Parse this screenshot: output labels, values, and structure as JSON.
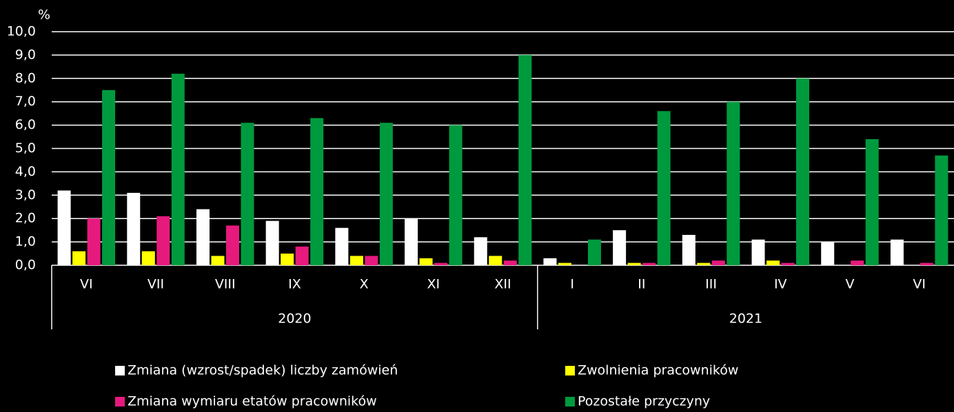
{
  "chart_data": {
    "type": "bar",
    "y_label": "%",
    "categories": [
      "VI",
      "VII",
      "VIII",
      "IX",
      "X",
      "XI",
      "XII",
      "I",
      "II",
      "III",
      "IV",
      "V",
      "VI"
    ],
    "x_groups": [
      {
        "label": "2020",
        "count": 7
      },
      {
        "label": "2021",
        "count": 6
      }
    ],
    "series": [
      {
        "name": "Zmiana (wzrost/spadek) liczby zamówień",
        "color": "#ffffff",
        "values": [
          3.2,
          3.1,
          2.4,
          1.9,
          1.6,
          2.0,
          1.2,
          0.3,
          1.5,
          1.3,
          1.1,
          1.0,
          1.1
        ]
      },
      {
        "name": "Zwolnienia pracowników",
        "color": "#ffff00",
        "values": [
          0.6,
          0.6,
          0.4,
          0.5,
          0.4,
          0.3,
          0.4,
          0.1,
          0.1,
          0.1,
          0.2,
          0,
          0
        ]
      },
      {
        "name": "Zmiana wymiaru etatów pracowników",
        "color": "#e6197d",
        "values": [
          2.0,
          2.1,
          1.7,
          0.8,
          0.4,
          0.1,
          0.2,
          0,
          0.1,
          0.2,
          0.1,
          0.2,
          0.1
        ]
      },
      {
        "name": "Pozostałe przyczyny",
        "color": "#009a3e",
        "values": [
          7.5,
          8.2,
          6.1,
          6.3,
          6.1,
          6.0,
          9.0,
          1.1,
          6.6,
          7.0,
          8.0,
          5.4,
          4.7
        ]
      }
    ],
    "ylim": [
      0,
      10
    ],
    "yticks": [
      {
        "value": 0,
        "label": "0,0"
      },
      {
        "value": 1,
        "label": "1,0"
      },
      {
        "value": 2,
        "label": "2,0"
      },
      {
        "value": 3,
        "label": "3,0"
      },
      {
        "value": 4,
        "label": "4,0"
      },
      {
        "value": 5,
        "label": "5,0"
      },
      {
        "value": 6,
        "label": "6,0"
      },
      {
        "value": 7,
        "label": "7,0"
      },
      {
        "value": 8,
        "label": "8,0"
      },
      {
        "value": 9,
        "label": "9,0"
      },
      {
        "value": 10,
        "label": "10,0"
      }
    ],
    "grid": true
  }
}
